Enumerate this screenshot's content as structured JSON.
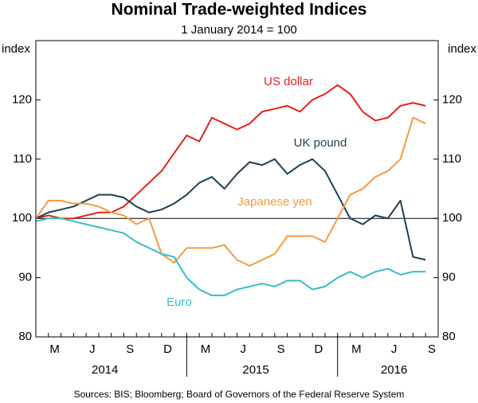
{
  "chart_data": {
    "type": "line",
    "title": "Nominal Trade-weighted Indices",
    "subtitle": "1 January 2014 = 100",
    "ylabel": "index",
    "source": "Sources:   BIS; Bloomberg; Board of Governors of the Federal Reserve System",
    "x": [
      "2014-01",
      "2014-02",
      "2014-03",
      "2014-04",
      "2014-05",
      "2014-06",
      "2014-07",
      "2014-08",
      "2014-09",
      "2014-10",
      "2014-11",
      "2014-12",
      "2015-01",
      "2015-02",
      "2015-03",
      "2015-04",
      "2015-05",
      "2015-06",
      "2015-07",
      "2015-08",
      "2015-09",
      "2015-10",
      "2015-11",
      "2015-12",
      "2016-01",
      "2016-02",
      "2016-03",
      "2016-04",
      "2016-05",
      "2016-06",
      "2016-07",
      "2016-08"
    ],
    "xlim": [
      "2014-01",
      "2016-09"
    ],
    "xticks": [
      {
        "value": "2014-03",
        "label": "M"
      },
      {
        "value": "2014-06",
        "label": "J"
      },
      {
        "value": "2014-09",
        "label": "S"
      },
      {
        "value": "2014-12",
        "label": "D"
      },
      {
        "value": "2015-03",
        "label": "M"
      },
      {
        "value": "2015-06",
        "label": "J"
      },
      {
        "value": "2015-09",
        "label": "S"
      },
      {
        "value": "2015-12",
        "label": "D"
      },
      {
        "value": "2016-03",
        "label": "M"
      },
      {
        "value": "2016-06",
        "label": "J"
      },
      {
        "value": "2016-09",
        "label": "S"
      }
    ],
    "year_labels": [
      {
        "value": "2014-07",
        "label": "2014"
      },
      {
        "value": "2015-07",
        "label": "2015"
      },
      {
        "value": "2016-06",
        "label": "2016"
      }
    ],
    "ylim": [
      80,
      130
    ],
    "yticks": [
      80,
      90,
      100,
      110,
      120
    ],
    "hline": 100,
    "series": [
      {
        "name": "US dollar",
        "color": "#e2231a",
        "values": [
          100,
          100.5,
          100,
          100,
          100.5,
          101,
          101,
          102,
          104,
          106,
          108,
          111,
          114,
          113,
          117,
          116,
          115,
          116,
          118,
          118.5,
          119,
          118,
          120,
          121,
          122.5,
          121,
          118,
          116.5,
          117,
          119,
          119.5,
          119
        ]
      },
      {
        "name": "UK pound",
        "color": "#1b3f54",
        "values": [
          100,
          101,
          101.5,
          102,
          103,
          104,
          104,
          103.5,
          102,
          101,
          101.5,
          102.5,
          104,
          106,
          107,
          105,
          107.5,
          109.5,
          109,
          110,
          107.5,
          109,
          110,
          108,
          104,
          100,
          99,
          100.5,
          100,
          103,
          93.5,
          93
        ]
      },
      {
        "name": "Japanese yen",
        "color": "#f59a3e",
        "values": [
          100,
          103,
          103,
          102.5,
          102.5,
          102,
          101,
          100.5,
          99,
          100,
          94,
          92.5,
          95,
          95,
          95,
          95.5,
          93,
          92,
          93,
          94,
          97,
          97,
          97,
          96,
          100,
          104,
          105,
          107,
          108,
          110,
          117,
          116
        ]
      },
      {
        "name": "Euro",
        "color": "#35bec8",
        "values": [
          99.5,
          100,
          100,
          99.5,
          99,
          98.5,
          98,
          97.5,
          96,
          95,
          94,
          93.5,
          90,
          88,
          87,
          87,
          88,
          88.5,
          89,
          88.5,
          89.5,
          89.5,
          88,
          88.5,
          90,
          91,
          90,
          91,
          91.5,
          90.5,
          91,
          91
        ]
      }
    ]
  }
}
